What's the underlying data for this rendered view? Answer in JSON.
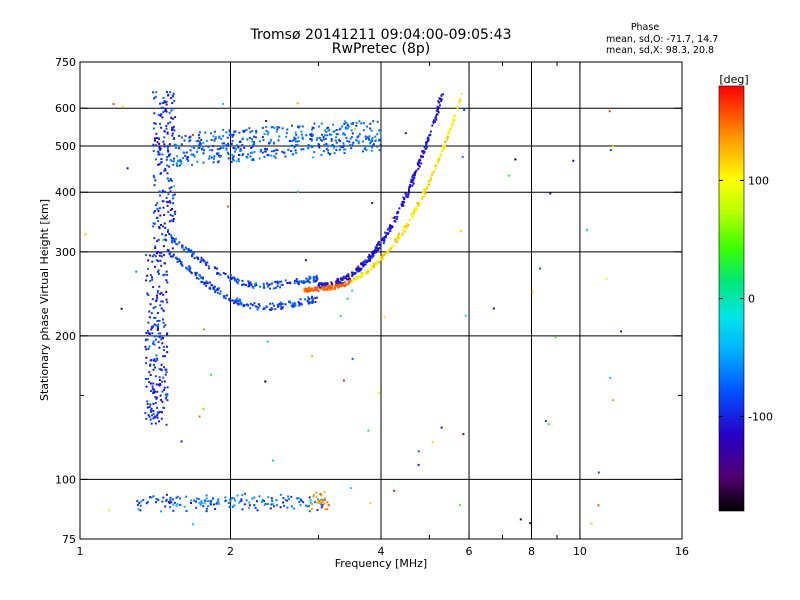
{
  "chart_data": {
    "type": "scatter",
    "title_line1": "Tromsø 20141211 09:04:00-09:05:43",
    "title_line2": "RwPretec (8p)",
    "xlabel": "Frequency [MHz]",
    "ylabel": "Stationary phase Virtual Height [km]",
    "x_scale": "log",
    "y_scale": "log",
    "xlim": [
      1,
      16
    ],
    "ylim": [
      75,
      750
    ],
    "x_ticks": [
      1,
      2,
      4,
      6,
      8,
      10,
      16
    ],
    "x_tick_labels": [
      "1",
      "2",
      "4",
      "6",
      "8",
      "10",
      "16"
    ],
    "x_minor_ticks": [
      3,
      5,
      7,
      9
    ],
    "y_ticks": [
      75,
      100,
      200,
      300,
      400,
      500,
      600,
      750
    ],
    "y_tick_labels": [
      "75",
      "100",
      "200",
      "300",
      "400",
      "500",
      "600",
      "750"
    ],
    "y_minor_ticks": [
      150
    ],
    "grid": true,
    "x_grid_lines": [
      2,
      4,
      6,
      8,
      10
    ],
    "y_grid_lines": [
      100,
      200,
      300,
      400,
      500,
      600
    ],
    "phase_box": {
      "title": "Phase",
      "stat_o": "mean, sd,O: -71.7, 14.7",
      "stat_x": "mean, sd,X:  98.3, 20.8"
    },
    "colorbar": {
      "unit_label": "[deg]",
      "range": [
        -180,
        180
      ],
      "ticks": [
        100,
        0,
        -100
      ],
      "tick_labels": [
        "100",
        "0",
        "-100"
      ],
      "colormap": "rainbow"
    },
    "traces": [
      {
        "name": "E-layer",
        "x_range": [
          1.3,
          3.1
        ],
        "y_range": [
          87,
          92
        ],
        "phase_range": [
          -110,
          -40
        ]
      },
      {
        "name": "E-layer-x-part",
        "x_range": [
          2.9,
          3.15
        ],
        "y_range": [
          86,
          94
        ],
        "phase_range": [
          120,
          150
        ]
      },
      {
        "name": "F1-O",
        "x_range": [
          1.5,
          3.0
        ],
        "y_range": [
          228,
          300
        ],
        "phase_range": [
          -110,
          -60
        ]
      },
      {
        "name": "F2-O",
        "x_range": [
          3.0,
          5.3
        ],
        "y_range": [
          255,
          640
        ],
        "phase_range": [
          -130,
          -90
        ]
      },
      {
        "name": "F-X",
        "x_range": [
          2.8,
          5.8
        ],
        "y_range": [
          250,
          640
        ],
        "phase_range": [
          90,
          130
        ]
      },
      {
        "name": "Spread-F",
        "x_range": [
          1.5,
          4.0
        ],
        "y_range": [
          450,
          530
        ],
        "phase_range": [
          -100,
          -50
        ]
      },
      {
        "name": "Lower-branch",
        "x_range": [
          1.35,
          1.5
        ],
        "y_range": [
          130,
          650
        ],
        "phase_range": [
          -120,
          -70
        ]
      },
      {
        "name": "Scatter",
        "x_range": [
          1.0,
          12.5
        ],
        "y_range": [
          80,
          650
        ],
        "phase_range": [
          -180,
          180
        ]
      }
    ]
  }
}
